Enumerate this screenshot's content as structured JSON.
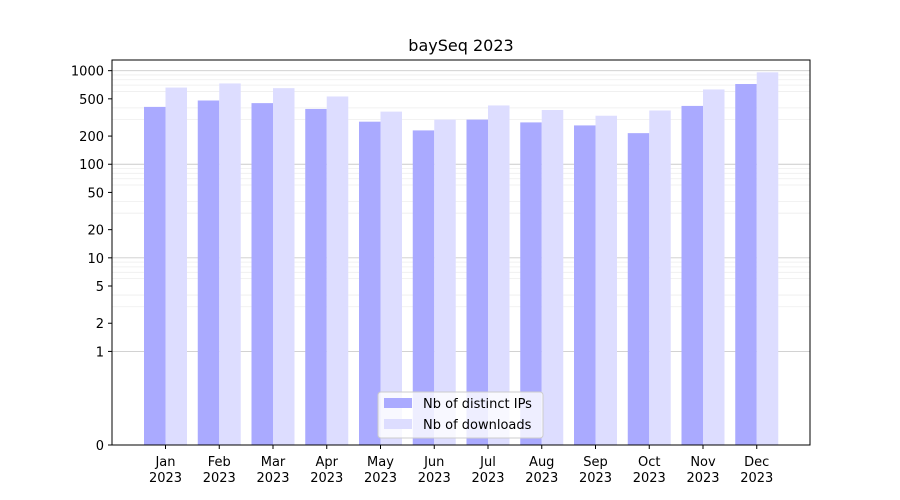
{
  "chart_data": {
    "type": "bar",
    "title": "baySeq 2023",
    "xlabel": "",
    "ylabel": "",
    "y_scale": "symlog",
    "ylim": [
      0,
      1300
    ],
    "y_ticks": [
      0,
      1,
      2,
      5,
      10,
      20,
      50,
      100,
      200,
      500,
      1000
    ],
    "y_tick_labels": [
      "0",
      "1",
      "2",
      "5",
      "10",
      "20",
      "50",
      "100",
      "200",
      "500",
      "1000"
    ],
    "grid": true,
    "legend_position": "bottom-center",
    "categories": [
      "Jan",
      "Feb",
      "Mar",
      "Apr",
      "May",
      "Jun",
      "Jul",
      "Aug",
      "Sep",
      "Oct",
      "Nov",
      "Dec"
    ],
    "category_sublabels": [
      "2023",
      "2023",
      "2023",
      "2023",
      "2023",
      "2023",
      "2023",
      "2023",
      "2023",
      "2023",
      "2023",
      "2023"
    ],
    "series": [
      {
        "name": "Nb of distinct IPs",
        "color": "#aaaaff",
        "values": [
          410,
          480,
          450,
          390,
          285,
          230,
          300,
          280,
          260,
          215,
          420,
          720
        ]
      },
      {
        "name": "Nb of downloads",
        "color": "#ddddff",
        "values": [
          660,
          730,
          650,
          530,
          365,
          300,
          425,
          380,
          330,
          375,
          630,
          960
        ]
      }
    ]
  }
}
